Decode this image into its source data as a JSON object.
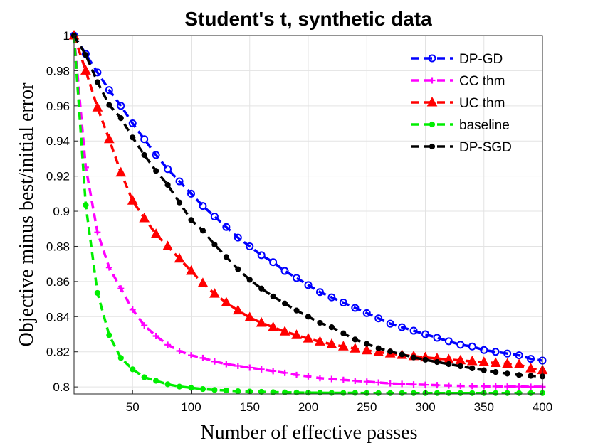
{
  "chart_data": {
    "type": "line",
    "title": "Student's t, synthetic data",
    "xlabel": "Number of effective passes",
    "ylabel": "Objective minus best/initial error",
    "xlim": [
      0,
      400
    ],
    "ylim": [
      0.796,
      1.0
    ],
    "xticks": [
      50,
      100,
      150,
      200,
      250,
      300,
      350,
      400
    ],
    "yticks": [
      0.8,
      0.82,
      0.84,
      0.86,
      0.88,
      0.9,
      0.92,
      0.94,
      0.96,
      0.98,
      1
    ],
    "ytick_labels": [
      "0.8",
      "0.82",
      "0.84",
      "0.86",
      "0.88",
      "0.9",
      "0.92",
      "0.94",
      "0.96",
      "0.98",
      "1"
    ],
    "xtick_labels": [
      "50",
      "100",
      "150",
      "200",
      "250",
      "300",
      "350",
      "400"
    ],
    "grid": true,
    "legend_position": "top-right",
    "series": [
      {
        "name": "DP-GD",
        "color": "#0000ff",
        "marker": "circle",
        "x": [
          0,
          10,
          20,
          30,
          40,
          50,
          60,
          70,
          80,
          90,
          100,
          110,
          120,
          130,
          140,
          150,
          160,
          170,
          180,
          190,
          200,
          210,
          220,
          230,
          240,
          250,
          260,
          270,
          280,
          290,
          300,
          310,
          320,
          330,
          340,
          350,
          360,
          370,
          380,
          390,
          400
        ],
        "y": [
          1.0,
          0.9895,
          0.979,
          0.969,
          0.96,
          0.95,
          0.941,
          0.932,
          0.924,
          0.917,
          0.91,
          0.903,
          0.897,
          0.891,
          0.885,
          0.88,
          0.875,
          0.871,
          0.866,
          0.862,
          0.858,
          0.854,
          0.851,
          0.848,
          0.845,
          0.842,
          0.839,
          0.836,
          0.834,
          0.832,
          0.83,
          0.828,
          0.826,
          0.824,
          0.823,
          0.821,
          0.82,
          0.819,
          0.818,
          0.816,
          0.815
        ]
      },
      {
        "name": "CC thm",
        "color": "#ff00ff",
        "marker": "plus",
        "x": [
          0,
          10,
          20,
          30,
          40,
          50,
          60,
          70,
          80,
          90,
          100,
          110,
          120,
          130,
          140,
          150,
          160,
          170,
          180,
          190,
          200,
          210,
          220,
          230,
          240,
          250,
          260,
          270,
          280,
          290,
          300,
          310,
          320,
          330,
          340,
          350,
          360,
          370,
          380,
          390,
          400
        ],
        "y": [
          1.0,
          0.925,
          0.888,
          0.868,
          0.856,
          0.844,
          0.835,
          0.829,
          0.824,
          0.8205,
          0.818,
          0.8165,
          0.8145,
          0.813,
          0.812,
          0.811,
          0.81,
          0.809,
          0.808,
          0.8068,
          0.806,
          0.805,
          0.8045,
          0.804,
          0.8035,
          0.803,
          0.8025,
          0.802,
          0.8017,
          0.8014,
          0.8012,
          0.801,
          0.8008,
          0.8006,
          0.8005,
          0.8004,
          0.8003,
          0.8002,
          0.8002,
          0.8001,
          0.8001
        ]
      },
      {
        "name": "UC thm",
        "color": "#ff0000",
        "marker": "triangle",
        "x": [
          0,
          10,
          20,
          30,
          40,
          50,
          60,
          70,
          80,
          90,
          100,
          110,
          120,
          130,
          140,
          150,
          160,
          170,
          180,
          190,
          200,
          210,
          220,
          230,
          240,
          250,
          260,
          270,
          280,
          290,
          300,
          310,
          320,
          330,
          340,
          350,
          360,
          370,
          380,
          390,
          400
        ],
        "y": [
          1.0,
          0.98,
          0.959,
          0.941,
          0.922,
          0.906,
          0.896,
          0.887,
          0.88,
          0.873,
          0.866,
          0.859,
          0.853,
          0.848,
          0.8435,
          0.8395,
          0.8365,
          0.834,
          0.8315,
          0.8295,
          0.8275,
          0.8258,
          0.8243,
          0.823,
          0.8218,
          0.8208,
          0.8198,
          0.819,
          0.8182,
          0.8175,
          0.8168,
          0.8162,
          0.8156,
          0.8151,
          0.8146,
          0.8141,
          0.8136,
          0.8132,
          0.8128,
          0.8105,
          0.8095
        ]
      },
      {
        "name": "baseline",
        "color": "#00ee00",
        "marker": "dot",
        "x": [
          0,
          10,
          20,
          30,
          40,
          50,
          60,
          70,
          80,
          90,
          100,
          110,
          120,
          130,
          140,
          150,
          160,
          170,
          180,
          190,
          200,
          210,
          220,
          230,
          240,
          250,
          260,
          270,
          280,
          290,
          300,
          310,
          320,
          330,
          340,
          350,
          360,
          370,
          380,
          390,
          400
        ],
        "y": [
          1.0,
          0.9035,
          0.8535,
          0.8295,
          0.8165,
          0.81,
          0.8055,
          0.8035,
          0.8015,
          0.8002,
          0.7995,
          0.7988,
          0.7983,
          0.798,
          0.7976,
          0.7974,
          0.7972,
          0.797,
          0.7969,
          0.7968,
          0.7967,
          0.7967,
          0.7966,
          0.7966,
          0.7966,
          0.7965,
          0.7965,
          0.7965,
          0.7965,
          0.7965,
          0.7965,
          0.7965,
          0.7965,
          0.7965,
          0.7965,
          0.7965,
          0.7965,
          0.7965,
          0.7965,
          0.7965,
          0.7965
        ]
      },
      {
        "name": "DP-SGD",
        "color": "#000000",
        "marker": "dot",
        "x": [
          0,
          10,
          20,
          30,
          40,
          50,
          60,
          70,
          80,
          90,
          100,
          110,
          120,
          130,
          140,
          150,
          160,
          170,
          180,
          190,
          200,
          210,
          220,
          230,
          240,
          250,
          260,
          270,
          280,
          290,
          300,
          310,
          320,
          330,
          340,
          350,
          360,
          370,
          380,
          390,
          400
        ],
        "y": [
          1.0,
          0.989,
          0.9735,
          0.9605,
          0.953,
          0.942,
          0.932,
          0.923,
          0.915,
          0.905,
          0.895,
          0.889,
          0.881,
          0.874,
          0.867,
          0.861,
          0.856,
          0.8515,
          0.8475,
          0.8435,
          0.84,
          0.8365,
          0.834,
          0.8305,
          0.827,
          0.8245,
          0.822,
          0.8202,
          0.8185,
          0.8168,
          0.8155,
          0.8142,
          0.813,
          0.8118,
          0.8106,
          0.8095,
          0.8085,
          0.8076,
          0.8068,
          0.8063,
          0.806
        ]
      }
    ]
  }
}
